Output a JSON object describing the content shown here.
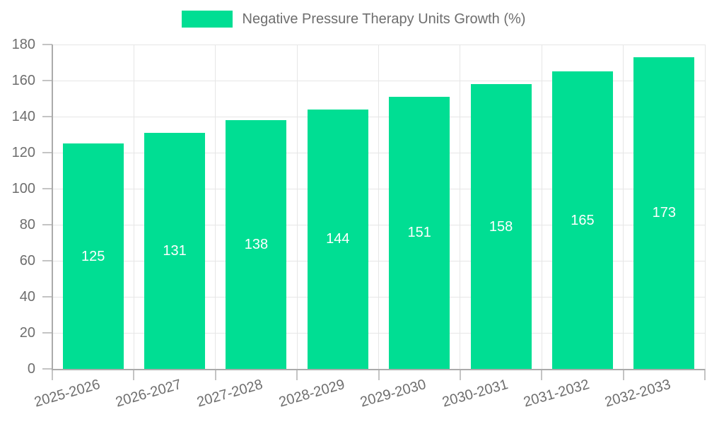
{
  "chart_data": {
    "type": "bar",
    "title": "Negative Pressure Therapy Units Growth (%)",
    "categories": [
      "2025-2026",
      "2026-2027",
      "2027-2028",
      "2028-2029",
      "2029-2030",
      "2030-2031",
      "2031-2032",
      "2032-2033"
    ],
    "values": [
      125,
      131,
      138,
      144,
      151,
      158,
      165,
      173
    ],
    "xlabel": "",
    "ylabel": "",
    "ylim": [
      0,
      180
    ],
    "ytick_step": 20,
    "yticks": [
      0,
      20,
      40,
      60,
      80,
      100,
      120,
      140,
      160,
      180
    ],
    "grid": true,
    "legend_position": "top-center",
    "bar_color": "#00DE93",
    "bar_value_label_color": "#ffffff",
    "axis_text_color": "#6e6e6e",
    "grid_color": "#e6e6e6",
    "axis_line_color": "#ababab"
  }
}
